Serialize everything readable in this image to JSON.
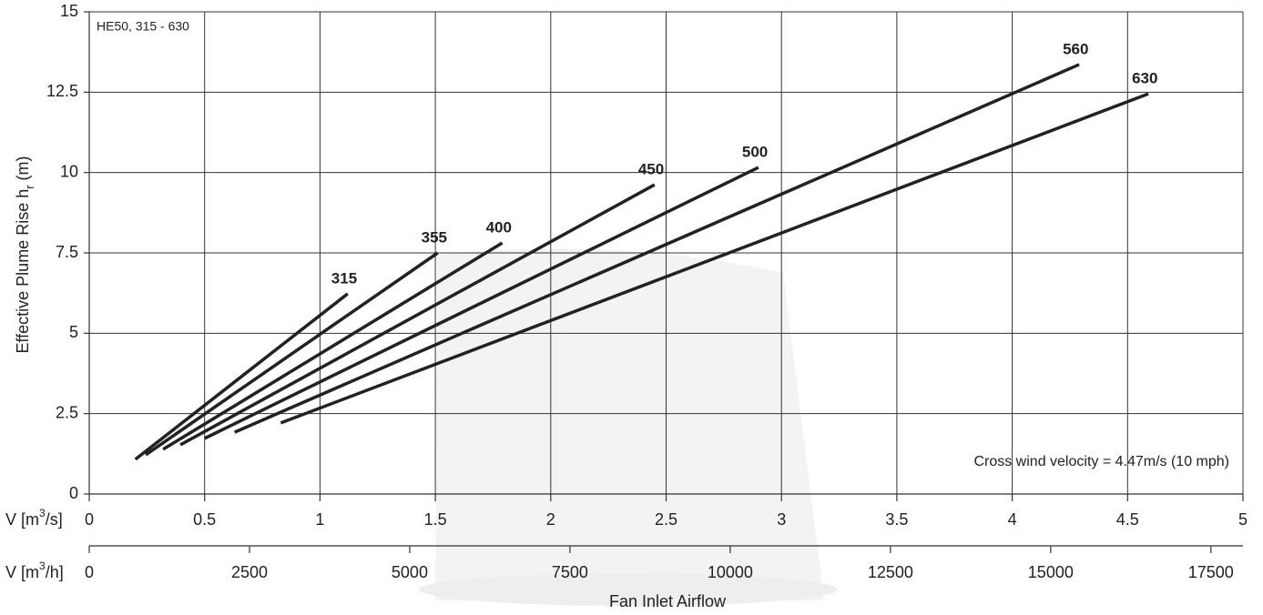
{
  "chart_data": {
    "type": "line",
    "annotation": "HE50, 315 - 630",
    "note": "Cross wind velocity = 4.47m/s (10 mph)",
    "y_label": {
      "text": "Effective Plume Rise h",
      "subscript": "r",
      "suffix": " (m)"
    },
    "x_label_1": {
      "prefix": "V [m",
      "sup": "3",
      "suffix": "/s]"
    },
    "x_label_2": {
      "prefix": "V [m",
      "sup": "3",
      "suffix": "/h]"
    },
    "x_title": "Fan Inlet Airflow",
    "xlim": [
      0,
      5
    ],
    "xticks": [
      0,
      0.5,
      1,
      1.5,
      2,
      2.5,
      3,
      3.5,
      4,
      4.5,
      5
    ],
    "x2lim": [
      0,
      18000
    ],
    "x2ticks": [
      0,
      2500,
      5000,
      7500,
      10000,
      12500,
      15000,
      17500
    ],
    "ylim": [
      0,
      15
    ],
    "yticks": [
      0,
      2.5,
      5,
      7.5,
      10,
      12.5,
      15
    ],
    "grid": true,
    "color": "#222222",
    "series": [
      {
        "name": "315",
        "x": [
          0.2,
          1.12
        ],
        "values": [
          1.08,
          6.23
        ]
      },
      {
        "name": "355",
        "x": [
          0.245,
          1.51
        ],
        "values": [
          1.22,
          7.5
        ]
      },
      {
        "name": "400",
        "x": [
          0.32,
          1.79
        ],
        "values": [
          1.39,
          7.81
        ]
      },
      {
        "name": "450",
        "x": [
          0.395,
          2.45
        ],
        "values": [
          1.53,
          9.62
        ]
      },
      {
        "name": "500",
        "x": [
          0.5,
          2.9
        ],
        "values": [
          1.73,
          10.16
        ]
      },
      {
        "name": "560",
        "x": [
          0.63,
          4.29
        ],
        "values": [
          1.92,
          13.36
        ]
      },
      {
        "name": "630",
        "x": [
          0.83,
          4.59
        ],
        "values": [
          2.21,
          12.45
        ]
      }
    ]
  }
}
